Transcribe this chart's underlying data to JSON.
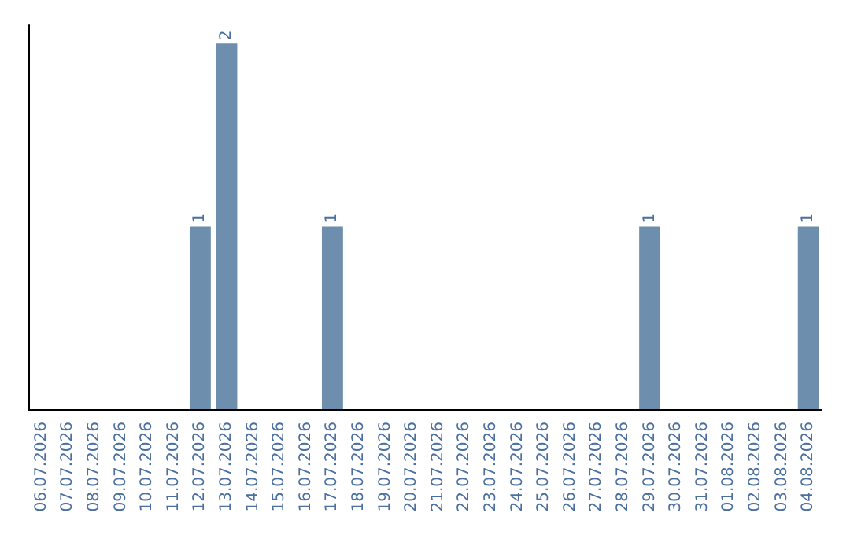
{
  "chart_data": {
    "type": "bar",
    "categories": [
      "06.07.2026",
      "07.07.2026",
      "08.07.2026",
      "09.07.2026",
      "10.07.2026",
      "11.07.2026",
      "12.07.2026",
      "13.07.2026",
      "14.07.2026",
      "15.07.2026",
      "16.07.2026",
      "17.07.2026",
      "18.07.2026",
      "19.07.2026",
      "20.07.2026",
      "21.07.2026",
      "22.07.2026",
      "23.07.2026",
      "24.07.2026",
      "25.07.2026",
      "26.07.2026",
      "27.07.2026",
      "28.07.2026",
      "29.07.2026",
      "30.07.2026",
      "31.07.2026",
      "01.08.2026",
      "02.08.2026",
      "03.08.2026",
      "04.08.2026"
    ],
    "values": [
      0,
      0,
      0,
      0,
      0,
      0,
      1,
      2,
      0,
      0,
      0,
      1,
      0,
      0,
      0,
      0,
      0,
      0,
      0,
      0,
      0,
      0,
      0,
      1,
      0,
      0,
      0,
      0,
      0,
      1
    ],
    "value_labels": [
      null,
      null,
      null,
      null,
      null,
      null,
      "1",
      "2",
      null,
      null,
      null,
      "1",
      null,
      null,
      null,
      null,
      null,
      null,
      null,
      null,
      null,
      null,
      null,
      "1",
      null,
      null,
      null,
      null,
      null,
      "1"
    ],
    "color": "#6d8fad",
    "ylim": [
      0,
      2.1
    ],
    "tick_labels": "x",
    "grid": false
  }
}
